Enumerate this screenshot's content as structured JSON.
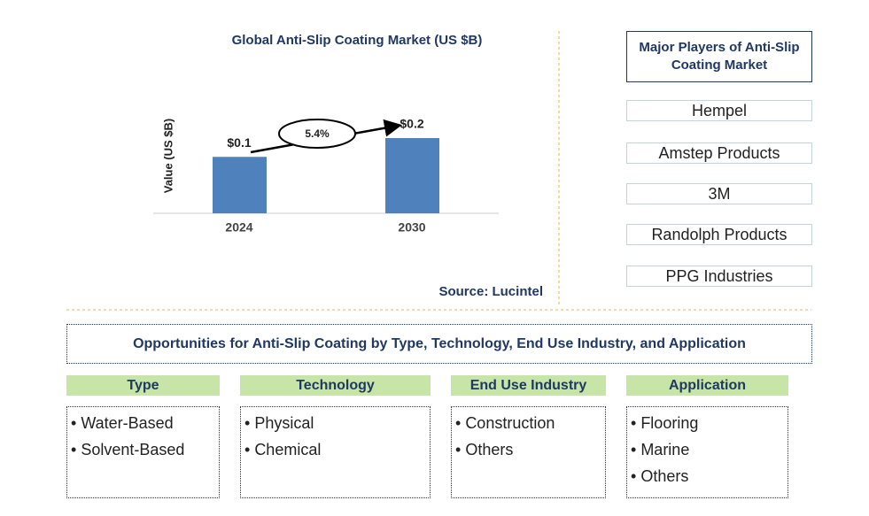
{
  "chart_data": {
    "type": "bar",
    "title": "Global Anti-Slip Coating Market (US $B)",
    "y_label": "Value (US $B)",
    "categories": [
      "2024",
      "2030"
    ],
    "values": [
      0.12,
      0.16
    ],
    "value_labels": [
      "$0.1",
      "$0.2"
    ],
    "color": "#4f81bd",
    "growth_label": "5.4%",
    "source": "Source: Lucintel"
  },
  "players": {
    "title": "Major Players of Anti-Slip Coating Market",
    "items": [
      "Hempel",
      "Amstep Products",
      "3M",
      "Randolph Products",
      "PPG Industries"
    ]
  },
  "opportunities": {
    "title": "Opportunities for Anti-Slip Coating by Type, Technology, End Use Industry, and Application",
    "segments": [
      {
        "name": "Type",
        "items": [
          "Water-Based",
          "Solvent-Based"
        ]
      },
      {
        "name": "Technology",
        "items": [
          "Physical",
          "Chemical"
        ]
      },
      {
        "name": "End Use Industry",
        "items": [
          "Construction",
          "Others"
        ]
      },
      {
        "name": "Application",
        "items": [
          "Flooring",
          "Marine",
          "Others"
        ]
      }
    ]
  }
}
